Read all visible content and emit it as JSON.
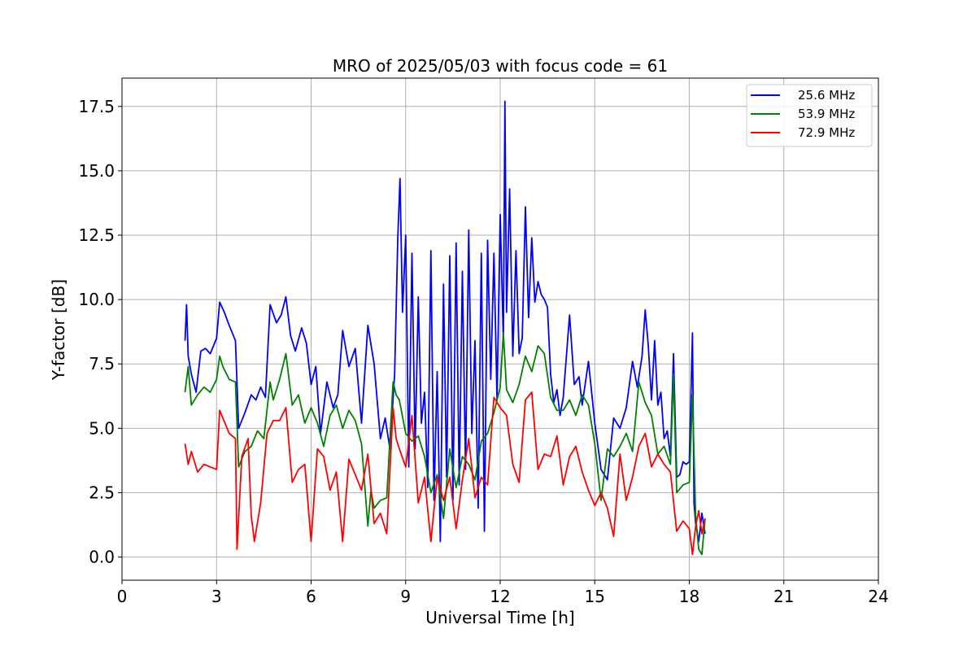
{
  "chart_data": {
    "type": "line",
    "title": "MRO of 2025/05/03 with focus code = 61",
    "xlabel": "Universal Time [h]",
    "ylabel": "Y-factor [dB]",
    "xlim": [
      0,
      24
    ],
    "ylim": [
      -0.9,
      18.6
    ],
    "xticks": [
      0,
      3,
      6,
      9,
      12,
      15,
      18,
      21,
      24
    ],
    "xtick_labels": [
      "0",
      "3",
      "6",
      "9",
      "12",
      "15",
      "18",
      "21",
      "24"
    ],
    "yticks": [
      0,
      2.5,
      5,
      7.5,
      10,
      12.5,
      15,
      17.5
    ],
    "ytick_labels": [
      "0.0",
      "2.5",
      "5.0",
      "7.5",
      "10.0",
      "12.5",
      "15.0",
      "17.5"
    ],
    "grid": true,
    "legend_position": "top-right",
    "series": [
      {
        "name": "25.6 MHz",
        "color": "#0000ff",
        "x": [
          2.0,
          2.05,
          2.1,
          2.2,
          2.35,
          2.5,
          2.65,
          2.8,
          3.0,
          3.1,
          3.25,
          3.4,
          3.6,
          3.7,
          3.9,
          4.1,
          4.25,
          4.4,
          4.55,
          4.7,
          4.9,
          5.05,
          5.2,
          5.35,
          5.5,
          5.7,
          5.85,
          6.0,
          6.15,
          6.3,
          6.5,
          6.7,
          6.85,
          7.0,
          7.2,
          7.4,
          7.6,
          7.8,
          8.0,
          8.2,
          8.35,
          8.5,
          8.65,
          8.75,
          8.82,
          8.9,
          9.0,
          9.1,
          9.2,
          9.3,
          9.4,
          9.5,
          9.6,
          9.7,
          9.8,
          9.9,
          10.0,
          10.1,
          10.2,
          10.3,
          10.4,
          10.5,
          10.6,
          10.7,
          10.8,
          10.9,
          11.0,
          11.1,
          11.2,
          11.3,
          11.4,
          11.5,
          11.6,
          11.7,
          11.8,
          11.9,
          12.0,
          12.1,
          12.15,
          12.2,
          12.3,
          12.4,
          12.5,
          12.6,
          12.7,
          12.8,
          12.9,
          13.0,
          13.1,
          13.2,
          13.3,
          13.4,
          13.5,
          13.6,
          13.7,
          13.8,
          13.9,
          14.0,
          14.2,
          14.35,
          14.5,
          14.6,
          14.8,
          15.0,
          15.2,
          15.4,
          15.6,
          15.8,
          16.0,
          16.2,
          16.35,
          16.5,
          16.6,
          16.7,
          16.8,
          16.9,
          17.0,
          17.1,
          17.2,
          17.3,
          17.4,
          17.5,
          17.6,
          17.7,
          17.8,
          17.9,
          18.0,
          18.1,
          18.15,
          18.2,
          18.3,
          18.4,
          18.5
        ],
        "values": [
          8.4,
          9.8,
          7.8,
          7.1,
          6.4,
          8.0,
          8.1,
          7.9,
          8.5,
          9.9,
          9.5,
          9.0,
          8.4,
          5.0,
          5.6,
          6.3,
          6.1,
          6.6,
          6.2,
          9.8,
          9.1,
          9.4,
          10.1,
          8.6,
          8.0,
          8.9,
          8.3,
          6.7,
          7.4,
          4.8,
          6.8,
          5.8,
          6.3,
          8.8,
          7.4,
          8.1,
          5.2,
          9.0,
          7.5,
          4.6,
          5.4,
          4.2,
          7.1,
          12.4,
          14.7,
          9.5,
          12.5,
          3.5,
          11.8,
          4.2,
          10.1,
          5.2,
          6.4,
          2.7,
          11.9,
          2.2,
          7.2,
          0.6,
          10.6,
          3.1,
          11.7,
          2.2,
          12.2,
          2.8,
          11.1,
          3.4,
          12.7,
          4.8,
          8.4,
          1.9,
          11.8,
          1.0,
          12.3,
          6.9,
          11.8,
          6.1,
          13.3,
          8.4,
          17.7,
          9.5,
          14.3,
          7.8,
          11.9,
          7.9,
          8.5,
          13.6,
          9.3,
          12.4,
          9.9,
          10.7,
          10.2,
          10.0,
          9.7,
          7.1,
          6.0,
          6.5,
          5.5,
          6.2,
          9.4,
          6.7,
          7.0,
          5.9,
          7.6,
          5.2,
          3.4,
          3.0,
          5.4,
          5.0,
          5.8,
          7.6,
          6.6,
          7.8,
          9.6,
          8.2,
          6.1,
          8.4,
          5.9,
          6.4,
          4.6,
          4.9,
          3.9,
          7.9,
          3.1,
          3.2,
          3.7,
          3.6,
          3.7,
          8.7,
          2.1,
          1.3,
          0.6,
          1.7,
          0.9
        ]
      },
      {
        "name": "53.9 MHz",
        "color": "#008000",
        "x": [
          2.0,
          2.1,
          2.2,
          2.4,
          2.6,
          2.8,
          3.0,
          3.1,
          3.2,
          3.4,
          3.6,
          3.7,
          3.9,
          4.1,
          4.3,
          4.5,
          4.7,
          4.8,
          5.0,
          5.2,
          5.4,
          5.6,
          5.8,
          6.0,
          6.2,
          6.4,
          6.6,
          6.8,
          7.0,
          7.2,
          7.4,
          7.6,
          7.8,
          7.9,
          8.0,
          8.2,
          8.4,
          8.6,
          8.7,
          8.8,
          9.0,
          9.2,
          9.4,
          9.6,
          9.8,
          10.0,
          10.2,
          10.4,
          10.6,
          10.8,
          11.0,
          11.2,
          11.4,
          11.6,
          11.8,
          12.0,
          12.1,
          12.2,
          12.4,
          12.6,
          12.8,
          13.0,
          13.2,
          13.4,
          13.6,
          13.8,
          14.0,
          14.2,
          14.4,
          14.6,
          14.8,
          15.0,
          15.2,
          15.4,
          15.6,
          15.8,
          16.0,
          16.2,
          16.4,
          16.6,
          16.8,
          17.0,
          17.2,
          17.4,
          17.5,
          17.6,
          17.8,
          18.0,
          18.1,
          18.2,
          18.3,
          18.4,
          18.5
        ],
        "values": [
          6.4,
          7.4,
          5.9,
          6.3,
          6.6,
          6.4,
          6.9,
          7.8,
          7.4,
          6.9,
          6.8,
          3.5,
          4.1,
          4.3,
          4.9,
          4.6,
          6.8,
          6.1,
          6.9,
          7.9,
          5.9,
          6.3,
          5.2,
          5.8,
          5.2,
          4.3,
          5.5,
          5.9,
          5.0,
          5.7,
          5.3,
          4.4,
          1.2,
          2.6,
          1.9,
          2.2,
          2.3,
          6.8,
          6.3,
          6.1,
          4.8,
          4.5,
          4.7,
          3.9,
          2.5,
          3.2,
          1.5,
          4.2,
          2.7,
          3.9,
          3.6,
          3.0,
          4.5,
          4.8,
          5.6,
          6.6,
          8.7,
          6.5,
          6.0,
          6.7,
          7.8,
          7.2,
          8.2,
          7.9,
          6.2,
          5.7,
          5.7,
          6.1,
          5.5,
          6.3,
          5.9,
          4.4,
          2.2,
          4.2,
          3.9,
          4.3,
          4.8,
          4.1,
          6.8,
          6.0,
          5.5,
          4.0,
          4.3,
          3.6,
          7.1,
          2.5,
          2.8,
          2.9,
          6.3,
          1.6,
          0.3,
          0.1,
          1.5
        ]
      },
      {
        "name": "72.9 MHz",
        "color": "#ff0000",
        "x": [
          2.0,
          2.1,
          2.2,
          2.4,
          2.6,
          2.8,
          3.0,
          3.1,
          3.2,
          3.4,
          3.6,
          3.65,
          3.8,
          4.0,
          4.1,
          4.2,
          4.4,
          4.6,
          4.8,
          5.0,
          5.2,
          5.4,
          5.6,
          5.8,
          6.0,
          6.2,
          6.4,
          6.6,
          6.8,
          7.0,
          7.2,
          7.4,
          7.6,
          7.8,
          8.0,
          8.2,
          8.4,
          8.6,
          8.7,
          8.8,
          9.0,
          9.2,
          9.4,
          9.6,
          9.8,
          10.0,
          10.2,
          10.4,
          10.6,
          10.8,
          11.0,
          11.2,
          11.4,
          11.6,
          11.8,
          12.0,
          12.2,
          12.4,
          12.6,
          12.8,
          13.0,
          13.2,
          13.4,
          13.6,
          13.8,
          14.0,
          14.2,
          14.4,
          14.6,
          14.8,
          15.0,
          15.2,
          15.4,
          15.6,
          15.8,
          16.0,
          16.2,
          16.4,
          16.6,
          16.8,
          17.0,
          17.2,
          17.4,
          17.6,
          17.8,
          18.0,
          18.1,
          18.2,
          18.3,
          18.4,
          18.5
        ],
        "values": [
          4.4,
          3.6,
          4.1,
          3.3,
          3.6,
          3.5,
          3.4,
          5.7,
          5.4,
          4.8,
          4.6,
          0.3,
          3.9,
          4.6,
          1.6,
          0.6,
          2.1,
          4.8,
          5.3,
          5.3,
          5.8,
          2.9,
          3.4,
          3.6,
          0.6,
          4.2,
          3.9,
          2.6,
          3.3,
          0.6,
          3.8,
          3.2,
          2.6,
          4.0,
          1.3,
          1.7,
          0.9,
          5.8,
          4.6,
          4.2,
          3.5,
          5.5,
          2.1,
          3.1,
          0.6,
          3.1,
          2.2,
          3.1,
          1.1,
          3.0,
          4.6,
          2.3,
          3.1,
          2.8,
          6.2,
          5.8,
          5.5,
          3.6,
          2.9,
          6.1,
          6.4,
          3.4,
          4.0,
          3.9,
          4.7,
          2.8,
          3.9,
          4.3,
          3.3,
          2.6,
          2.0,
          2.5,
          1.9,
          0.8,
          4.0,
          2.2,
          3.1,
          4.3,
          4.8,
          3.5,
          4.0,
          3.6,
          3.3,
          1.0,
          1.4,
          1.1,
          0.1,
          1.2,
          1.8,
          0.9,
          1.5
        ]
      }
    ]
  }
}
